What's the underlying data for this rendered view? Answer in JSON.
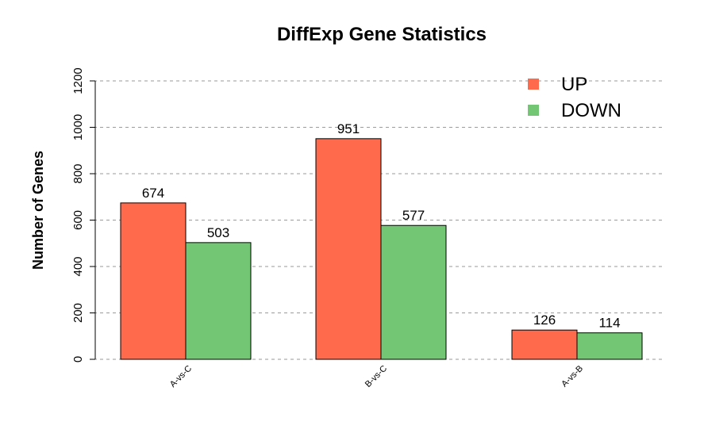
{
  "chart_data": {
    "type": "bar",
    "title": "DiffExp Gene Statistics",
    "xlabel": "",
    "ylabel": "Number of Genes",
    "categories": [
      "A-vs-C",
      "B-vs-C",
      "A-vs-B"
    ],
    "series": [
      {
        "name": "UP",
        "values": [
          674,
          951,
          126
        ],
        "color": "#FF6A4D"
      },
      {
        "name": "DOWN",
        "values": [
          503,
          577,
          114
        ],
        "color": "#73C673"
      }
    ],
    "ylim": [
      0,
      1200
    ],
    "yticks": [
      0,
      200,
      400,
      600,
      800,
      1000,
      1200
    ],
    "grid": true,
    "legend_position": "top-right"
  }
}
